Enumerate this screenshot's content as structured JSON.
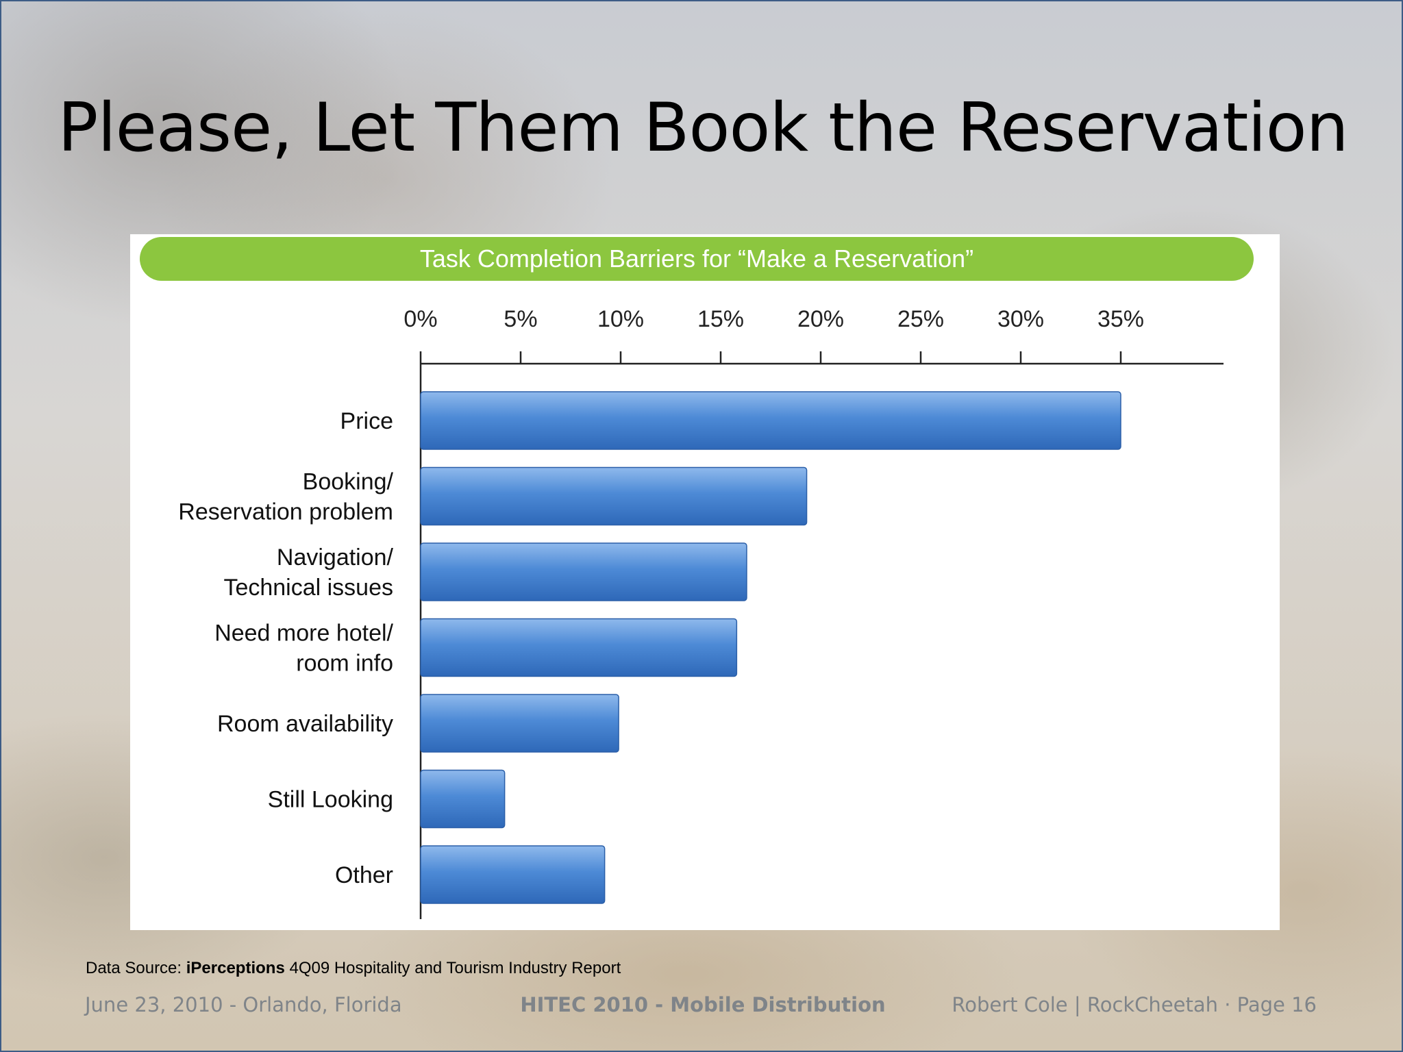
{
  "slide": {
    "title": "Please, Let Them Book the Reservation",
    "source_prefix": "Data Source: ",
    "source_bold": "iPerceptions",
    "source_rest": " 4Q09 Hospitality and Tourism Industry Report",
    "footer_left": "June 23, 2010 - Orlando, Florida",
    "footer_center": "HITEC 2010 - Mobile Distribution",
    "footer_right": "Robert Cole | RockCheetah · Page 16"
  },
  "colors": {
    "banner": "#8cc63f",
    "bar": "#3f7fcf",
    "axis": "#222222"
  },
  "chart_data": {
    "type": "bar",
    "orientation": "horizontal",
    "title": "Task Completion Barriers for “Make a Reservation”",
    "categories": [
      [
        "Price"
      ],
      [
        "Booking/",
        "Reservation problem"
      ],
      [
        "Navigation/",
        "Technical issues"
      ],
      [
        "Need more hotel/",
        "room info"
      ],
      [
        "Room availability"
      ],
      [
        "Still Looking"
      ],
      [
        "Other"
      ]
    ],
    "values": [
      35,
      19.3,
      16.3,
      15.8,
      9.9,
      4.2,
      9.2
    ],
    "xlim": [
      0,
      40
    ],
    "ticks": [
      0,
      5,
      10,
      15,
      20,
      25,
      30,
      35
    ],
    "tick_labels": [
      "0%",
      "5%",
      "10%",
      "15%",
      "20%",
      "25%",
      "30%",
      "35%"
    ],
    "axis_position": "top",
    "grid": false,
    "legend": "none"
  }
}
